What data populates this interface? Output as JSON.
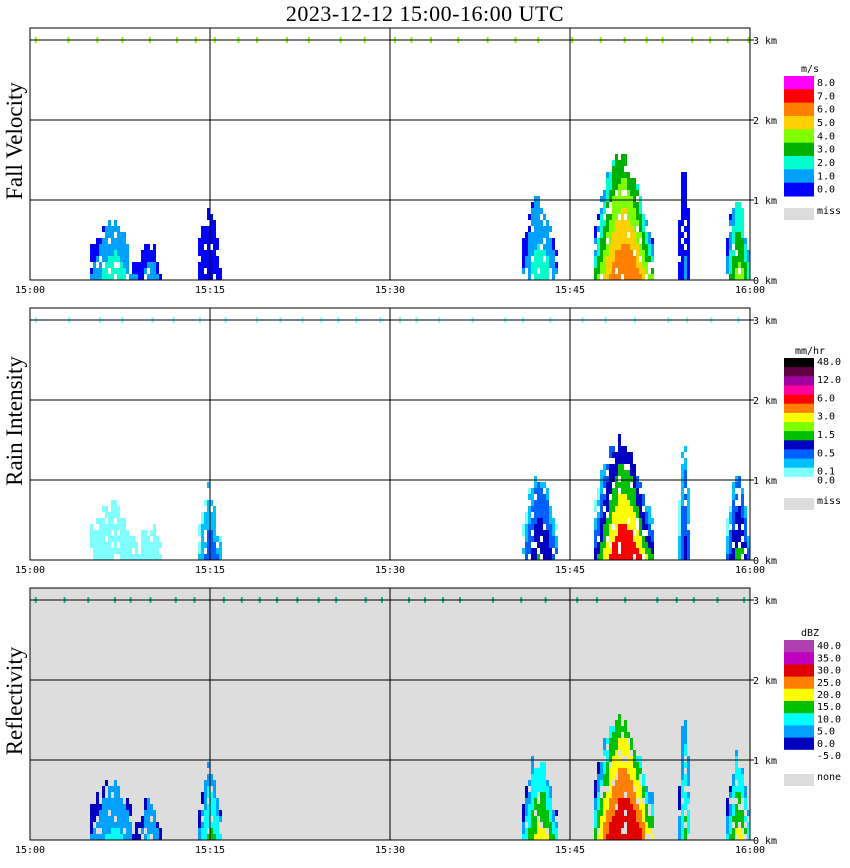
{
  "title": "2023-12-12   15:00-16:00 UTC",
  "x_ticks": [
    "15:00",
    "15:15",
    "15:30",
    "15:45",
    "16:00"
  ],
  "y_ticks": [
    "0 km",
    "1 km",
    "2 km",
    "3 km"
  ],
  "panels": [
    {
      "key": "fv",
      "ylabel": "Fall Velocity",
      "unit": "m/s",
      "background": "#ffffff",
      "missing_label": "miss",
      "missing_color": "#dddddd",
      "colorbar": [
        {
          "label": "8.0",
          "color": "#ff00ff"
        },
        {
          "label": "7.0",
          "color": "#ff0000"
        },
        {
          "label": "6.0",
          "color": "#ff8000"
        },
        {
          "label": "5.0",
          "color": "#ffd000"
        },
        {
          "label": "4.0",
          "color": "#80ff00"
        },
        {
          "label": "3.0",
          "color": "#00b000"
        },
        {
          "label": "2.0",
          "color": "#00ffcc"
        },
        {
          "label": "1.0",
          "color": "#00a0ff"
        },
        {
          "label": "0.0",
          "color": "#0000ff"
        }
      ]
    },
    {
      "key": "ri",
      "ylabel": "Rain Intensity",
      "unit": "mm/hr",
      "background": "#ffffff",
      "missing_label": "miss",
      "missing_color": "#dddddd",
      "colorbar": [
        {
          "label": "48.0",
          "color": "#000000"
        },
        {
          "label": "",
          "color": "#600040"
        },
        {
          "label": "12.0",
          "color": "#a000a0"
        },
        {
          "label": "",
          "color": "#ff00a0"
        },
        {
          "label": "6.0",
          "color": "#ff0000"
        },
        {
          "label": "",
          "color": "#ff8000"
        },
        {
          "label": "3.0",
          "color": "#ffff00"
        },
        {
          "label": "",
          "color": "#80ff00"
        },
        {
          "label": "1.5",
          "color": "#00c000"
        },
        {
          "label": "",
          "color": "#0000c0"
        },
        {
          "label": "0.5",
          "color": "#0060ff"
        },
        {
          "label": "",
          "color": "#00c0ff"
        },
        {
          "label": "0.1",
          "color": "#80ffff"
        },
        {
          "label": "0.0",
          "color": "#ffffff"
        }
      ]
    },
    {
      "key": "ref",
      "ylabel": "Reflectivity",
      "unit": "dBZ",
      "background": "#dddddd",
      "missing_label": "none",
      "missing_color": "#dddddd",
      "colorbar": [
        {
          "label": "40.0",
          "color": "#b040b0"
        },
        {
          "label": "35.0",
          "color": "#c000c0"
        },
        {
          "label": "30.0",
          "color": "#e00000"
        },
        {
          "label": "25.0",
          "color": "#ff8000"
        },
        {
          "label": "20.0",
          "color": "#ffff00"
        },
        {
          "label": "15.0",
          "color": "#00c000"
        },
        {
          "label": "10.0",
          "color": "#00ffff"
        },
        {
          "label": "5.0",
          "color": "#00a0ff"
        },
        {
          "label": "0.0",
          "color": "#0000c0"
        },
        {
          "label": "-5.0",
          "color": "#ffffff"
        }
      ]
    }
  ],
  "chart_data": [
    {
      "type": "heatmap",
      "title": "Fall Velocity",
      "unit": "m/s",
      "x_range": [
        "15:00",
        "16:00"
      ],
      "y_range_km": [
        0,
        3.0
      ],
      "echoes": [
        {
          "start": "15:05",
          "end": "15:09",
          "top_km": 0.85,
          "dominant": "1.0-3.0 m/s"
        },
        {
          "start": "15:09",
          "end": "15:11",
          "top_km": 0.6,
          "dominant": "1.0-2.0 m/s"
        },
        {
          "start": "15:14",
          "end": "15:16",
          "top_km": 1.0,
          "dominant": "0.0-1.0 m/s"
        },
        {
          "start": "15:41",
          "end": "15:44",
          "top_km": 1.15,
          "dominant": "1.0-3.0 m/s"
        },
        {
          "start": "15:47",
          "end": "15:52",
          "top_km": 1.65,
          "dominant": "4.0-7.0 m/s"
        },
        {
          "start": "15:54",
          "end": "15:55",
          "top_km": 1.65,
          "dominant": "1.0-2.0 m/s"
        },
        {
          "start": "15:58",
          "end": "16:00",
          "top_km": 1.15,
          "dominant": "2.0-4.0 m/s"
        }
      ]
    },
    {
      "type": "heatmap",
      "title": "Rain Intensity",
      "unit": "mm/hr",
      "x_range": [
        "15:00",
        "16:00"
      ],
      "y_range_km": [
        0,
        3.0
      ],
      "echoes": [
        {
          "start": "15:05",
          "end": "15:09",
          "top_km": 0.85,
          "dominant": "0.0-0.1 mm/hr"
        },
        {
          "start": "15:09",
          "end": "15:11",
          "top_km": 0.6,
          "dominant": "0.0-0.1 mm/hr"
        },
        {
          "start": "15:14",
          "end": "15:16",
          "top_km": 1.0,
          "dominant": "0.1-0.5 mm/hr"
        },
        {
          "start": "15:41",
          "end": "15:44",
          "top_km": 1.15,
          "dominant": "0.5-1.5 mm/hr"
        },
        {
          "start": "15:47",
          "end": "15:52",
          "top_km": 1.65,
          "dominant": "0.5-6.0 mm/hr"
        },
        {
          "start": "15:54",
          "end": "15:55",
          "top_km": 1.65,
          "dominant": "0.5-1.5 mm/hr"
        },
        {
          "start": "15:58",
          "end": "16:00",
          "top_km": 1.15,
          "dominant": "0.5-3.0 mm/hr"
        }
      ]
    },
    {
      "type": "heatmap",
      "title": "Reflectivity",
      "unit": "dBZ",
      "x_range": [
        "15:00",
        "16:00"
      ],
      "y_range_km": [
        0,
        3.0
      ],
      "echoes": [
        {
          "start": "15:05",
          "end": "15:09",
          "top_km": 0.85,
          "dominant": "0.0-10.0 dBZ"
        },
        {
          "start": "15:09",
          "end": "15:11",
          "top_km": 0.6,
          "dominant": "0.0-10.0 dBZ"
        },
        {
          "start": "15:14",
          "end": "15:16",
          "top_km": 1.0,
          "dominant": "5.0-15.0 dBZ"
        },
        {
          "start": "15:41",
          "end": "15:44",
          "top_km": 1.15,
          "dominant": "10.0-20.0 dBZ"
        },
        {
          "start": "15:47",
          "end": "15:52",
          "top_km": 1.65,
          "dominant": "15.0-30.0 dBZ"
        },
        {
          "start": "15:54",
          "end": "15:55",
          "top_km": 1.65,
          "dominant": "10.0-15.0 dBZ"
        },
        {
          "start": "15:58",
          "end": "16:00",
          "top_km": 1.15,
          "dominant": "10.0-20.0 dBZ"
        }
      ]
    }
  ]
}
